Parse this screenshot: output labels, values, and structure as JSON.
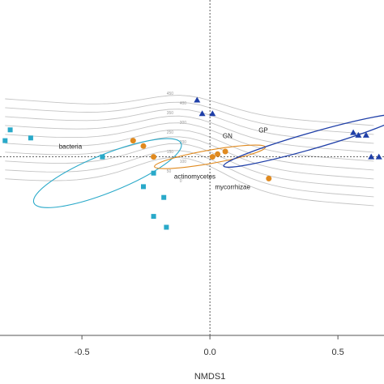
{
  "chart_data": {
    "type": "scatter",
    "title": "",
    "xlabel": "NMDS1",
    "ylabel": "",
    "xlim": [
      -0.82,
      0.68
    ],
    "ylim": [
      -0.66,
      0.58
    ],
    "x_ticks": [
      {
        "value": -0.5,
        "label": "-0.5"
      },
      {
        "value": 0.0,
        "label": "0.0"
      },
      {
        "value": 0.5,
        "label": "0.5"
      }
    ],
    "reference_lines": {
      "x": 0,
      "y": 0,
      "style": "dotted"
    },
    "series": [
      {
        "name": "bacteria",
        "marker": "square",
        "color": "#29a9c9",
        "points": [
          [
            -0.78,
            0.1
          ],
          [
            -0.8,
            0.06
          ],
          [
            -0.7,
            0.07
          ],
          [
            -0.42,
            0.0
          ],
          [
            -0.22,
            -0.06
          ],
          [
            -0.26,
            -0.11
          ],
          [
            -0.18,
            -0.15
          ],
          [
            -0.22,
            -0.22
          ],
          [
            -0.17,
            -0.26
          ]
        ],
        "ellipse": {
          "center": [
            -0.4,
            -0.06
          ],
          "rx": 0.31,
          "ry": 0.07,
          "angle_deg": -22
        }
      },
      {
        "name": "actinomycetes / mycorrhizae",
        "marker": "circle",
        "color": "#e08a1f",
        "points": [
          [
            -0.3,
            0.06
          ],
          [
            -0.26,
            0.04
          ],
          [
            -0.22,
            0.0
          ],
          [
            0.01,
            0.0
          ],
          [
            0.03,
            0.01
          ],
          [
            0.06,
            0.02
          ],
          [
            0.23,
            -0.08
          ]
        ],
        "ellipse": {
          "center": [
            0.0,
            0.0
          ],
          "rx": 0.22,
          "ry": 0.025,
          "angle_deg": -10
        }
      },
      {
        "name": "GN / GP",
        "marker": "triangle",
        "color": "#1f3fa8",
        "points": [
          [
            -0.05,
            0.21
          ],
          [
            -0.03,
            0.16
          ],
          [
            0.01,
            0.16
          ],
          [
            0.56,
            0.09
          ],
          [
            0.58,
            0.08
          ],
          [
            0.61,
            0.08
          ],
          [
            0.63,
            0.0
          ],
          [
            0.66,
            0.0
          ]
        ],
        "ellipse": {
          "center": [
            0.4,
            0.06
          ],
          "rx": 0.36,
          "ry": 0.03,
          "angle_deg": -16
        }
      }
    ],
    "contour_labels": [
      "450",
      "400",
      "350",
      "300",
      "250",
      "200",
      "150",
      "100",
      "50",
      "0"
    ],
    "annotations": [
      {
        "text": "bacteria",
        "x": -0.59,
        "y": 0.03
      },
      {
        "text": "GN",
        "x": 0.05,
        "y": 0.07
      },
      {
        "text": "GP",
        "x": 0.19,
        "y": 0.09
      },
      {
        "text": "actinomycetes",
        "x": -0.14,
        "y": -0.08
      },
      {
        "text": "mycorrhizae",
        "x": 0.02,
        "y": -0.12
      }
    ]
  }
}
